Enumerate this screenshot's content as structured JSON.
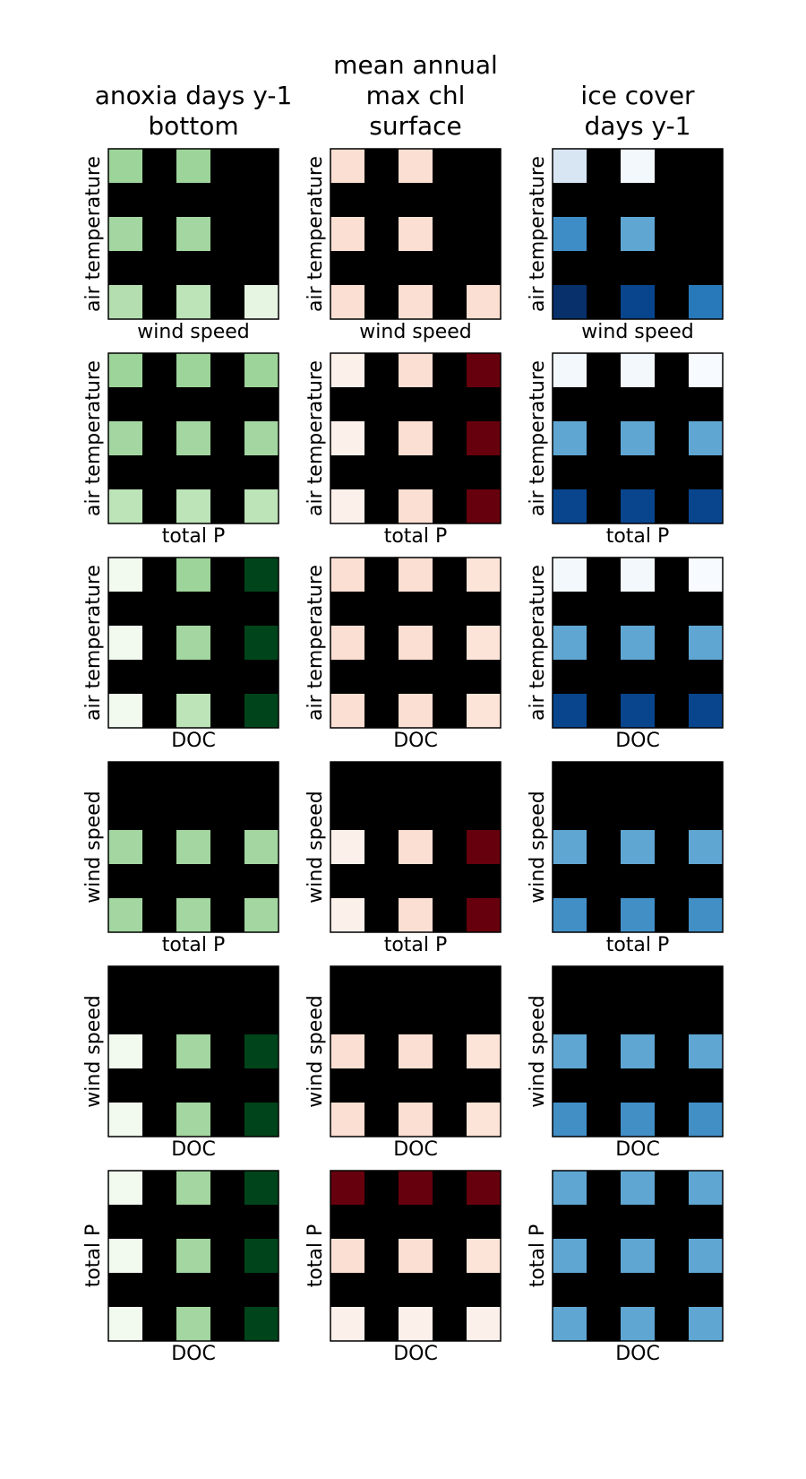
{
  "chart_data": {
    "type": "heatmap",
    "grid": false,
    "column_titles": [
      [
        "anoxia days y-1",
        "bottom"
      ],
      [
        "mean annual",
        "max chl",
        "surface"
      ],
      [
        "ice cover",
        "days y-1"
      ]
    ],
    "colormaps": [
      "Greens",
      "Reds",
      "Blues"
    ],
    "background_color": "#000000",
    "row_axes": [
      {
        "ylabel": "air temperature",
        "xlabel": "wind speed"
      },
      {
        "ylabel": "air temperature",
        "xlabel": "total P"
      },
      {
        "ylabel": "air temperature",
        "xlabel": "DOC"
      },
      {
        "ylabel": "wind speed",
        "xlabel": "total P"
      },
      {
        "ylabel": "wind speed",
        "xlabel": "DOC"
      },
      {
        "ylabel": "total P",
        "xlabel": "DOC"
      }
    ],
    "panels": [
      [
        [
          [
            "#9dd49a",
            "#9dd49a",
            null
          ],
          [
            "#a3d6a0",
            "#a3d6a0",
            null
          ],
          [
            "#b5deb0",
            "#bde3b8",
            "#e6f4e2"
          ]
        ],
        [
          [
            "#fbdfd2",
            "#fbdfd2",
            null
          ],
          [
            "#fbdfd2",
            "#fbdfd2",
            null
          ],
          [
            "#fbdfd2",
            "#fbdfd2",
            "#fbdfd2"
          ]
        ],
        [
          [
            "#d8e6f4",
            "#f3f8fd",
            null
          ],
          [
            "#3f8dc6",
            "#5fa6d2",
            null
          ],
          [
            "#08306b",
            "#08458d",
            "#2879ba"
          ]
        ]
      ],
      [
        [
          [
            "#9dd49a",
            "#9dd49a",
            "#9dd49a"
          ],
          [
            "#a3d6a0",
            "#a3d6a0",
            "#a3d6a0"
          ],
          [
            "#bde3b8",
            "#bde3b8",
            "#bde3b8"
          ]
        ],
        [
          [
            "#fcf0eb",
            "#fbdfd2",
            "#67000d"
          ],
          [
            "#fcf0eb",
            "#fbdfd2",
            "#67000d"
          ],
          [
            "#fcf0eb",
            "#fbdfd2",
            "#67000d"
          ]
        ],
        [
          [
            "#f3f8fd",
            "#f3f8fd",
            "#f7fbff"
          ],
          [
            "#5fa6d2",
            "#5fa6d2",
            "#5fa6d2"
          ],
          [
            "#08458d",
            "#08458d",
            "#08458d"
          ]
        ]
      ],
      [
        [
          [
            "#f2f9ef",
            "#9dd49a",
            "#00441b"
          ],
          [
            "#f2f9ef",
            "#a3d6a0",
            "#00441b"
          ],
          [
            "#f2f9ef",
            "#bde3b8",
            "#00441b"
          ]
        ],
        [
          [
            "#fbdfd2",
            "#fbdfd2",
            "#fde4d8"
          ],
          [
            "#fbdfd2",
            "#fbdfd2",
            "#fde4d8"
          ],
          [
            "#fbdfd2",
            "#fbdfd2",
            "#fde4d8"
          ]
        ],
        [
          [
            "#f3f8fd",
            "#f3f8fd",
            "#f7fbff"
          ],
          [
            "#5fa6d2",
            "#5fa6d2",
            "#5fa6d2"
          ],
          [
            "#08458d",
            "#08458d",
            "#08458d"
          ]
        ]
      ],
      [
        [
          [
            null,
            null,
            null
          ],
          [
            "#a3d6a0",
            "#a3d6a0",
            "#a3d6a0"
          ],
          [
            "#a3d6a0",
            "#a3d6a0",
            "#a3d6a0"
          ]
        ],
        [
          [
            null,
            null,
            null
          ],
          [
            "#fcf0eb",
            "#fbdfd2",
            "#67000d"
          ],
          [
            "#fcf0eb",
            "#fbdfd2",
            "#67000d"
          ]
        ],
        [
          [
            null,
            null,
            null
          ],
          [
            "#5fa6d2",
            "#5fa6d2",
            "#5fa6d2"
          ],
          [
            "#428fc6",
            "#428fc6",
            "#428fc6"
          ]
        ]
      ],
      [
        [
          [
            null,
            null,
            null
          ],
          [
            "#f2f9ef",
            "#a3d6a0",
            "#00441b"
          ],
          [
            "#f2f9ef",
            "#a3d6a0",
            "#00441b"
          ]
        ],
        [
          [
            null,
            null,
            null
          ],
          [
            "#fbdfd2",
            "#fbdfd2",
            "#fde4d8"
          ],
          [
            "#fbdfd2",
            "#fbdfd2",
            "#fde4d8"
          ]
        ],
        [
          [
            null,
            null,
            null
          ],
          [
            "#5fa6d2",
            "#5fa6d2",
            "#5fa6d2"
          ],
          [
            "#428fc6",
            "#428fc6",
            "#428fc6"
          ]
        ]
      ],
      [
        [
          [
            "#f2f9ef",
            "#a3d6a0",
            "#00441b"
          ],
          [
            "#f2f9ef",
            "#a3d6a0",
            "#00441b"
          ],
          [
            "#f2f9ef",
            "#a3d6a0",
            "#00441b"
          ]
        ],
        [
          [
            "#67000d",
            "#67000d",
            "#67000d"
          ],
          [
            "#fbdfd2",
            "#fbdfd2",
            "#fde4d8"
          ],
          [
            "#fcf0eb",
            "#fcf0eb",
            "#fcf0eb"
          ]
        ],
        [
          [
            "#5fa6d2",
            "#5fa6d2",
            "#5fa6d2"
          ],
          [
            "#5fa6d2",
            "#5fa6d2",
            "#5fa6d2"
          ],
          [
            "#5fa6d2",
            "#5fa6d2",
            "#5fa6d2"
          ]
        ]
      ]
    ]
  }
}
